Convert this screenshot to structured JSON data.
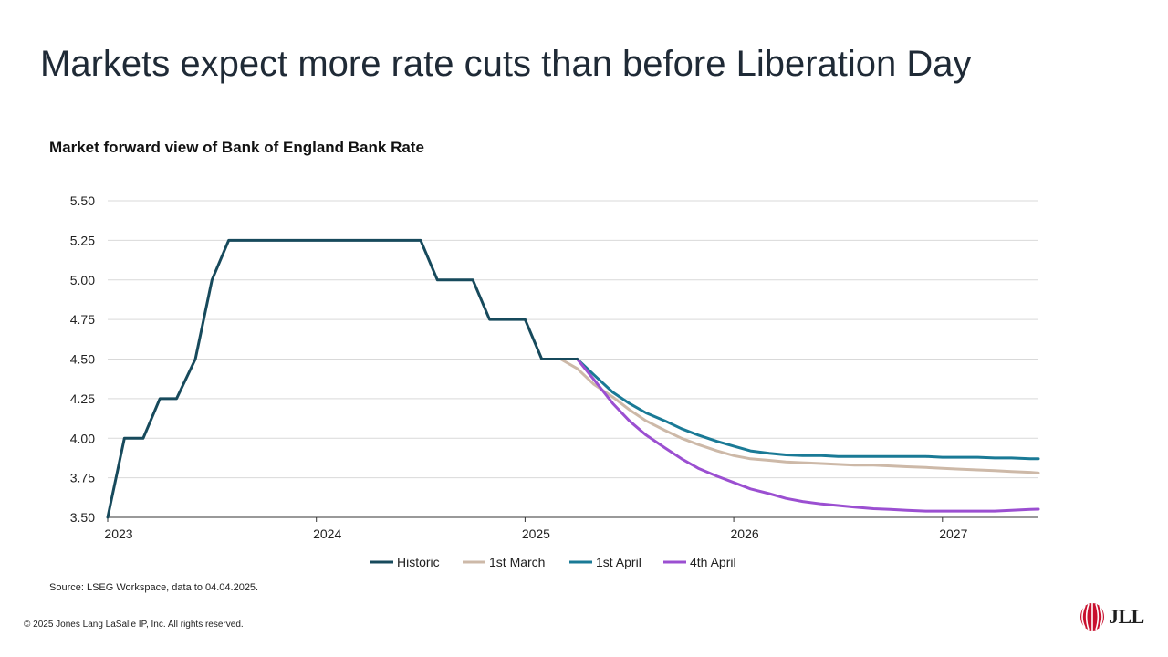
{
  "title": "Markets expect more rate cuts than before Liberation Day",
  "source": "Source: LSEG Workspace, data to 04.04.2025.",
  "copyright": "© 2025 Jones Lang LaSalle IP, Inc. All rights reserved.",
  "logo": {
    "text": "JLL",
    "icon": "jll-logo-icon",
    "color": "#c8102e"
  },
  "chart_data": {
    "type": "line",
    "title": "Market forward view of Bank of England Bank Rate",
    "xlabel": "",
    "ylabel": "",
    "x_ticks": [
      "2023",
      "2024",
      "2025",
      "2026",
      "2027"
    ],
    "xlim": [
      2023.0,
      2027.46
    ],
    "y_ticks": [
      "3.50",
      "3.75",
      "4.00",
      "4.25",
      "4.50",
      "4.75",
      "5.00",
      "5.25",
      "5.50"
    ],
    "ylim": [
      3.5,
      5.5
    ],
    "grid": true,
    "legend_position": "bottom",
    "series": [
      {
        "name": "Historic",
        "color": "#174a5c",
        "x": [
          2023.0,
          2023.08,
          2023.17,
          2023.25,
          2023.33,
          2023.42,
          2023.5,
          2023.58,
          2023.67,
          2023.75,
          2023.83,
          2023.92,
          2024.0,
          2024.08,
          2024.17,
          2024.25,
          2024.33,
          2024.42,
          2024.5,
          2024.58,
          2024.67,
          2024.75,
          2024.83,
          2024.92,
          2025.0,
          2025.08,
          2025.17,
          2025.25
        ],
        "y": [
          3.5,
          4.0,
          4.0,
          4.25,
          4.25,
          4.5,
          5.0,
          5.25,
          5.25,
          5.25,
          5.25,
          5.25,
          5.25,
          5.25,
          5.25,
          5.25,
          5.25,
          5.25,
          5.25,
          5.0,
          5.0,
          5.0,
          4.75,
          4.75,
          4.75,
          4.5,
          4.5,
          4.5
        ]
      },
      {
        "name": "1st March",
        "color": "#cdb9a8",
        "x": [
          2025.17,
          2025.25,
          2025.33,
          2025.42,
          2025.5,
          2025.58,
          2025.67,
          2025.75,
          2025.83,
          2025.92,
          2026.0,
          2026.08,
          2026.17,
          2026.25,
          2026.33,
          2026.42,
          2026.5,
          2026.58,
          2026.67,
          2026.75,
          2026.83,
          2026.92,
          2027.0,
          2027.08,
          2027.17,
          2027.25,
          2027.33,
          2027.42,
          2027.46
        ],
        "y": [
          4.5,
          4.44,
          4.34,
          4.26,
          4.18,
          4.11,
          4.05,
          4.0,
          3.96,
          3.92,
          3.89,
          3.87,
          3.86,
          3.85,
          3.845,
          3.84,
          3.835,
          3.83,
          3.83,
          3.825,
          3.82,
          3.815,
          3.81,
          3.805,
          3.8,
          3.795,
          3.79,
          3.785,
          3.78
        ]
      },
      {
        "name": "1st April",
        "color": "#1a7a96",
        "x": [
          2025.25,
          2025.33,
          2025.42,
          2025.5,
          2025.58,
          2025.67,
          2025.75,
          2025.83,
          2025.92,
          2026.0,
          2026.08,
          2026.17,
          2026.25,
          2026.33,
          2026.42,
          2026.5,
          2026.58,
          2026.67,
          2026.75,
          2026.83,
          2026.92,
          2027.0,
          2027.08,
          2027.17,
          2027.25,
          2027.33,
          2027.42,
          2027.46
        ],
        "y": [
          4.5,
          4.4,
          4.29,
          4.22,
          4.16,
          4.11,
          4.06,
          4.02,
          3.98,
          3.95,
          3.92,
          3.905,
          3.895,
          3.89,
          3.89,
          3.885,
          3.885,
          3.885,
          3.885,
          3.885,
          3.885,
          3.88,
          3.88,
          3.88,
          3.875,
          3.875,
          3.87,
          3.87
        ]
      },
      {
        "name": "4th April",
        "color": "#9b4fd1",
        "x": [
          2025.25,
          2025.33,
          2025.42,
          2025.5,
          2025.58,
          2025.67,
          2025.75,
          2025.83,
          2025.92,
          2026.0,
          2026.08,
          2026.17,
          2026.25,
          2026.33,
          2026.42,
          2026.5,
          2026.58,
          2026.67,
          2026.75,
          2026.83,
          2026.92,
          2027.0,
          2027.08,
          2027.17,
          2027.25,
          2027.33,
          2027.42,
          2027.46
        ],
        "y": [
          4.5,
          4.37,
          4.22,
          4.11,
          4.02,
          3.94,
          3.87,
          3.81,
          3.76,
          3.72,
          3.68,
          3.65,
          3.62,
          3.6,
          3.585,
          3.575,
          3.565,
          3.555,
          3.55,
          3.545,
          3.54,
          3.54,
          3.54,
          3.54,
          3.54,
          3.545,
          3.55,
          3.552
        ]
      }
    ]
  }
}
